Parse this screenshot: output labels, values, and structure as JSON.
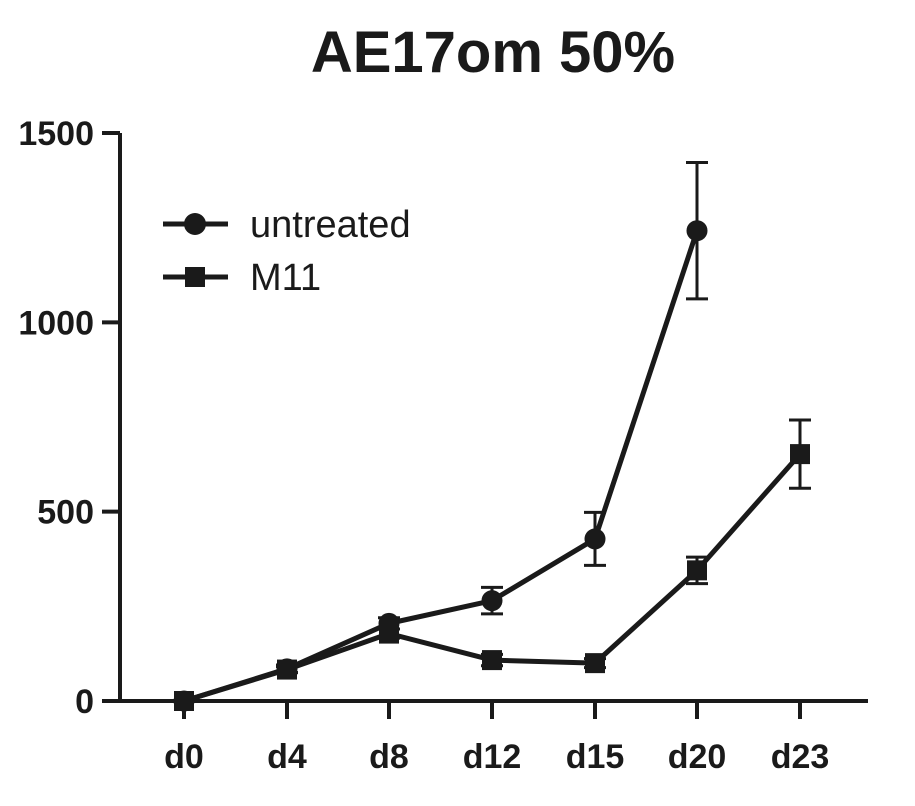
{
  "chart_data": {
    "type": "line",
    "title": "AE17om 50%",
    "xlabel": "",
    "ylabel": "",
    "categories": [
      "d0",
      "d4",
      "d8",
      "d12",
      "d15",
      "d20",
      "d23"
    ],
    "ylim": [
      0,
      1500
    ],
    "yticks": [
      0,
      500,
      1000,
      1500
    ],
    "legend_position": "top-left",
    "grid": false,
    "series": [
      {
        "name": "untreated",
        "marker": "circle",
        "values": [
          0,
          85,
          205,
          265,
          428,
          1242,
          null
        ],
        "errors": [
          0,
          10,
          15,
          35,
          70,
          180,
          null
        ]
      },
      {
        "name": "M11",
        "marker": "square",
        "values": [
          0,
          83,
          178,
          108,
          100,
          345,
          652
        ],
        "errors": [
          0,
          8,
          12,
          15,
          12,
          35,
          90
        ]
      }
    ],
    "colors": {
      "line": "#1a1a1a"
    }
  }
}
